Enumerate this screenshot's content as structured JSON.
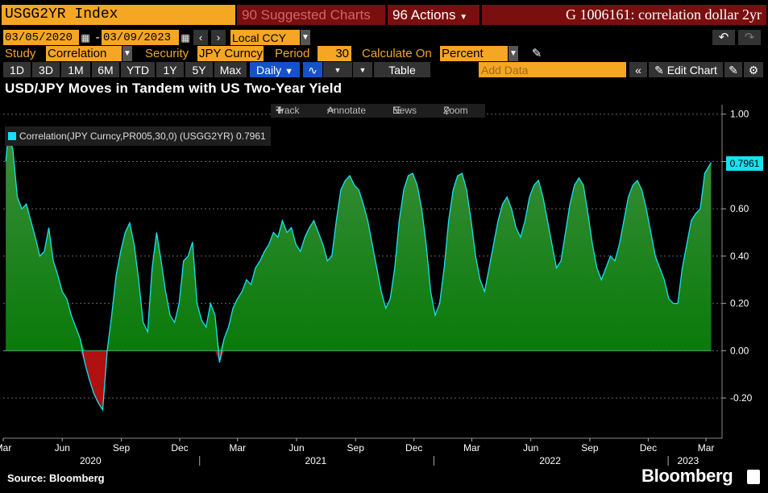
{
  "toolbar": {
    "ticker": "USGG2YR Index",
    "suggested": "Suggested Charts",
    "actions": "Actions",
    "title": "G 1006161: correlation dollar 2yr"
  },
  "controls": {
    "start_date": "03/05/2020",
    "end_date": "03/09/2023",
    "currency": "Local CCY",
    "study_label": "Study",
    "study_value": "Correlation",
    "security_label": "Security",
    "security_value": "JPY Curncy",
    "period_label": "Period",
    "period_value": "30",
    "calc_label": "Calculate On",
    "calc_value": "Percent"
  },
  "periods": [
    "1D",
    "3D",
    "1M",
    "6M",
    "YTD",
    "1Y",
    "5Y",
    "Max"
  ],
  "frequency": "Daily",
  "table_label": "Table",
  "add_data_placeholder": "Add Data",
  "edit_chart": "Edit Chart",
  "headline": "USD/JPY Moves in Tandem with US Two-Year Yield",
  "chart_tools": {
    "track": "Track",
    "annotate": "Annotate",
    "news": "News",
    "zoom": "Zoom"
  },
  "legend": "Correlation(JPY Curncy,PR005,30,0) (USGG2YR) 0.7961",
  "last_value": "0.7961",
  "source": "Source: Bloomberg",
  "brand": "Bloomberg",
  "colors": {
    "accent": "#f5a623",
    "series_line": "#19e0f0",
    "area_positive": "#0f8a10",
    "area_negative": "#b01010"
  },
  "chart_data": {
    "type": "area",
    "title": "USD/JPY Moves in Tandem with US Two-Year Yield",
    "series": [
      {
        "name": "Correlation(JPY Curncy,PR005,30,0) (USGG2YR)",
        "points": [
          [
            "2020-03-05",
            0.8
          ],
          [
            "2020-03-09",
            0.92
          ],
          [
            "2020-03-16",
            0.85
          ],
          [
            "2020-03-23",
            0.65
          ],
          [
            "2020-03-30",
            0.6
          ],
          [
            "2020-04-06",
            0.62
          ],
          [
            "2020-04-13",
            0.55
          ],
          [
            "2020-04-20",
            0.48
          ],
          [
            "2020-04-27",
            0.4
          ],
          [
            "2020-05-04",
            0.42
          ],
          [
            "2020-05-11",
            0.52
          ],
          [
            "2020-05-18",
            0.38
          ],
          [
            "2020-05-25",
            0.32
          ],
          [
            "2020-06-01",
            0.25
          ],
          [
            "2020-06-08",
            0.22
          ],
          [
            "2020-06-15",
            0.15
          ],
          [
            "2020-06-22",
            0.1
          ],
          [
            "2020-06-29",
            0.05
          ],
          [
            "2020-07-06",
            -0.05
          ],
          [
            "2020-07-13",
            -0.12
          ],
          [
            "2020-07-20",
            -0.18
          ],
          [
            "2020-07-27",
            -0.22
          ],
          [
            "2020-08-03",
            -0.25
          ],
          [
            "2020-08-10",
            0.0
          ],
          [
            "2020-08-17",
            0.15
          ],
          [
            "2020-08-24",
            0.32
          ],
          [
            "2020-08-31",
            0.42
          ],
          [
            "2020-09-07",
            0.5
          ],
          [
            "2020-09-14",
            0.54
          ],
          [
            "2020-09-21",
            0.45
          ],
          [
            "2020-09-28",
            0.3
          ],
          [
            "2020-10-05",
            0.12
          ],
          [
            "2020-10-12",
            0.08
          ],
          [
            "2020-10-19",
            0.35
          ],
          [
            "2020-10-26",
            0.5
          ],
          [
            "2020-11-02",
            0.38
          ],
          [
            "2020-11-09",
            0.25
          ],
          [
            "2020-11-16",
            0.15
          ],
          [
            "2020-11-23",
            0.12
          ],
          [
            "2020-11-30",
            0.2
          ],
          [
            "2020-12-07",
            0.38
          ],
          [
            "2020-12-14",
            0.4
          ],
          [
            "2020-12-21",
            0.46
          ],
          [
            "2020-12-28",
            0.2
          ],
          [
            "2021-01-04",
            0.13
          ],
          [
            "2021-01-11",
            0.1
          ],
          [
            "2021-01-18",
            0.2
          ],
          [
            "2021-01-25",
            0.15
          ],
          [
            "2021-02-01",
            -0.05
          ],
          [
            "2021-02-08",
            0.05
          ],
          [
            "2021-02-15",
            0.1
          ],
          [
            "2021-02-22",
            0.18
          ],
          [
            "2021-03-01",
            0.22
          ],
          [
            "2021-03-08",
            0.25
          ],
          [
            "2021-03-15",
            0.3
          ],
          [
            "2021-03-22",
            0.28
          ],
          [
            "2021-03-29",
            0.35
          ],
          [
            "2021-04-05",
            0.38
          ],
          [
            "2021-04-12",
            0.42
          ],
          [
            "2021-04-19",
            0.45
          ],
          [
            "2021-04-26",
            0.5
          ],
          [
            "2021-05-03",
            0.48
          ],
          [
            "2021-05-10",
            0.55
          ],
          [
            "2021-05-17",
            0.5
          ],
          [
            "2021-05-24",
            0.52
          ],
          [
            "2021-05-31",
            0.45
          ],
          [
            "2021-06-07",
            0.42
          ],
          [
            "2021-06-14",
            0.48
          ],
          [
            "2021-06-21",
            0.52
          ],
          [
            "2021-06-28",
            0.55
          ],
          [
            "2021-07-05",
            0.5
          ],
          [
            "2021-07-12",
            0.45
          ],
          [
            "2021-07-19",
            0.38
          ],
          [
            "2021-07-26",
            0.4
          ],
          [
            "2021-08-02",
            0.55
          ],
          [
            "2021-08-09",
            0.68
          ],
          [
            "2021-08-16",
            0.72
          ],
          [
            "2021-08-23",
            0.74
          ],
          [
            "2021-08-30",
            0.7
          ],
          [
            "2021-09-06",
            0.68
          ],
          [
            "2021-09-13",
            0.62
          ],
          [
            "2021-09-20",
            0.55
          ],
          [
            "2021-09-27",
            0.45
          ],
          [
            "2021-10-04",
            0.35
          ],
          [
            "2021-10-11",
            0.25
          ],
          [
            "2021-10-18",
            0.18
          ],
          [
            "2021-10-25",
            0.22
          ],
          [
            "2021-11-01",
            0.35
          ],
          [
            "2021-11-08",
            0.55
          ],
          [
            "2021-11-15",
            0.68
          ],
          [
            "2021-11-22",
            0.74
          ],
          [
            "2021-11-29",
            0.75
          ],
          [
            "2021-12-06",
            0.7
          ],
          [
            "2021-12-13",
            0.6
          ],
          [
            "2021-12-20",
            0.45
          ],
          [
            "2021-12-27",
            0.25
          ],
          [
            "2022-01-03",
            0.15
          ],
          [
            "2022-01-10",
            0.2
          ],
          [
            "2022-01-17",
            0.35
          ],
          [
            "2022-01-24",
            0.55
          ],
          [
            "2022-01-31",
            0.68
          ],
          [
            "2022-02-07",
            0.74
          ],
          [
            "2022-02-14",
            0.75
          ],
          [
            "2022-02-21",
            0.68
          ],
          [
            "2022-02-28",
            0.55
          ],
          [
            "2022-03-07",
            0.4
          ],
          [
            "2022-03-14",
            0.3
          ],
          [
            "2022-03-21",
            0.25
          ],
          [
            "2022-03-28",
            0.35
          ],
          [
            "2022-04-04",
            0.45
          ],
          [
            "2022-04-11",
            0.55
          ],
          [
            "2022-04-18",
            0.62
          ],
          [
            "2022-04-25",
            0.65
          ],
          [
            "2022-05-02",
            0.6
          ],
          [
            "2022-05-09",
            0.52
          ],
          [
            "2022-05-16",
            0.48
          ],
          [
            "2022-05-23",
            0.55
          ],
          [
            "2022-05-30",
            0.65
          ],
          [
            "2022-06-06",
            0.7
          ],
          [
            "2022-06-13",
            0.72
          ],
          [
            "2022-06-20",
            0.65
          ],
          [
            "2022-06-27",
            0.55
          ],
          [
            "2022-07-04",
            0.45
          ],
          [
            "2022-07-11",
            0.35
          ],
          [
            "2022-07-18",
            0.38
          ],
          [
            "2022-07-25",
            0.5
          ],
          [
            "2022-08-01",
            0.62
          ],
          [
            "2022-08-08",
            0.7
          ],
          [
            "2022-08-15",
            0.73
          ],
          [
            "2022-08-22",
            0.7
          ],
          [
            "2022-08-29",
            0.58
          ],
          [
            "2022-09-05",
            0.45
          ],
          [
            "2022-09-12",
            0.35
          ],
          [
            "2022-09-19",
            0.3
          ],
          [
            "2022-09-26",
            0.35
          ],
          [
            "2022-10-03",
            0.4
          ],
          [
            "2022-10-10",
            0.38
          ],
          [
            "2022-10-17",
            0.45
          ],
          [
            "2022-10-24",
            0.55
          ],
          [
            "2022-10-31",
            0.65
          ],
          [
            "2022-11-07",
            0.7
          ],
          [
            "2022-11-14",
            0.72
          ],
          [
            "2022-11-21",
            0.68
          ],
          [
            "2022-11-28",
            0.6
          ],
          [
            "2022-12-05",
            0.5
          ],
          [
            "2022-12-12",
            0.4
          ],
          [
            "2022-12-19",
            0.35
          ],
          [
            "2022-12-26",
            0.3
          ],
          [
            "2023-01-02",
            0.22
          ],
          [
            "2023-01-09",
            0.2
          ],
          [
            "2023-01-16",
            0.2
          ],
          [
            "2023-01-23",
            0.35
          ],
          [
            "2023-01-30",
            0.45
          ],
          [
            "2023-02-06",
            0.55
          ],
          [
            "2023-02-13",
            0.58
          ],
          [
            "2023-02-20",
            0.6
          ],
          [
            "2023-02-27",
            0.75
          ],
          [
            "2023-03-09",
            0.7961
          ]
        ]
      }
    ],
    "x_range": [
      "2020-03-01",
      "2023-03-26"
    ],
    "x_month_labels": [
      [
        "2020-03-01",
        "Mar"
      ],
      [
        "2020-06-01",
        "Jun"
      ],
      [
        "2020-09-01",
        "Sep"
      ],
      [
        "2020-12-01",
        "Dec"
      ],
      [
        "2021-03-01",
        "Mar"
      ],
      [
        "2021-06-01",
        "Jun"
      ],
      [
        "2021-09-01",
        "Sep"
      ],
      [
        "2021-12-01",
        "Dec"
      ],
      [
        "2022-03-01",
        "Mar"
      ],
      [
        "2022-06-01",
        "Jun"
      ],
      [
        "2022-09-01",
        "Sep"
      ],
      [
        "2022-12-01",
        "Dec"
      ],
      [
        "2023-03-01",
        "Mar"
      ]
    ],
    "x_year_labels": [
      [
        "2020-07-15",
        "2020"
      ],
      [
        "2021-07-01",
        "2021"
      ],
      [
        "2022-07-01",
        "2022"
      ],
      [
        "2023-02-01",
        "2023"
      ]
    ],
    "year_dividers": [
      "2021-01-01",
      "2022-01-01",
      "2023-01-01"
    ],
    "ylim": [
      -0.37,
      1.04
    ],
    "yticks": [
      -0.2,
      0.0,
      0.2,
      0.4,
      0.6,
      0.8,
      1.0
    ],
    "ytick_labels": [
      "-0.20",
      "0.00",
      "0.20",
      "0.40",
      "0.60",
      "0.80",
      "1.00"
    ],
    "grid": true,
    "legend_position": "top-left"
  }
}
